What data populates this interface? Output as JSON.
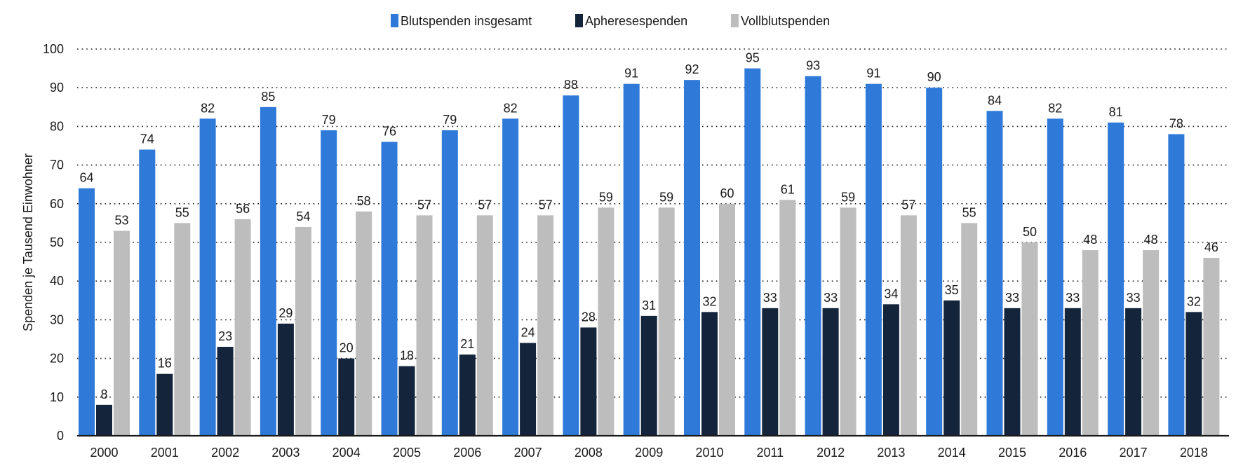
{
  "chart_data": {
    "type": "bar",
    "ylabel": "Spenden je Tausend Einwohner",
    "ylim": [
      0,
      100
    ],
    "yticks": [
      0,
      10,
      20,
      30,
      40,
      50,
      60,
      70,
      80,
      90,
      100
    ],
    "grid": true,
    "legend_position": "top-center",
    "categories": [
      "2000",
      "2001",
      "2002",
      "2003",
      "2004",
      "2005",
      "2006",
      "2007",
      "2008",
      "2009",
      "2010",
      "2011",
      "2012",
      "2013",
      "2014",
      "2015",
      "2016",
      "2017",
      "2018"
    ],
    "series": [
      {
        "name": "Blutspenden insgesamt",
        "color": "#2f79d9",
        "values": [
          64,
          74,
          82,
          85,
          79,
          76,
          79,
          82,
          88,
          91,
          92,
          95,
          93,
          91,
          90,
          84,
          82,
          81,
          78
        ]
      },
      {
        "name": "Apheresespenden",
        "color": "#14243b",
        "values": [
          8,
          16,
          23,
          29,
          20,
          18,
          21,
          24,
          28,
          31,
          32,
          33,
          33,
          34,
          35,
          33,
          33,
          33,
          32
        ]
      },
      {
        "name": "Vollblutspenden",
        "color": "#bdbdbd",
        "values": [
          53,
          55,
          56,
          54,
          58,
          57,
          57,
          57,
          59,
          59,
          60,
          61,
          59,
          57,
          55,
          50,
          48,
          48,
          46
        ]
      }
    ]
  }
}
